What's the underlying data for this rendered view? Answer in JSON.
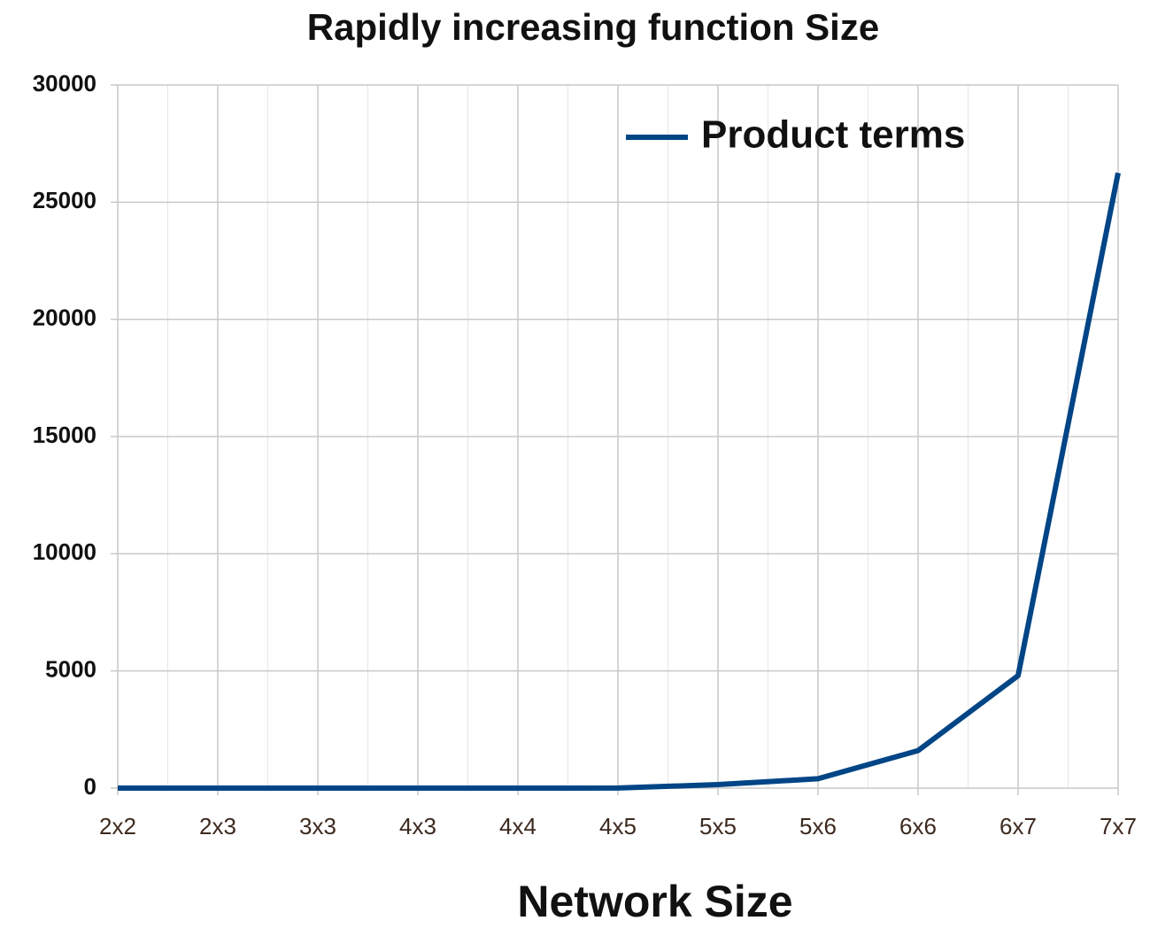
{
  "chart_data": {
    "type": "line",
    "title": "Rapidly increasing function Size",
    "x_label": "Network Size",
    "categories": [
      "2x2",
      "2x3",
      "3x3",
      "4x3",
      "4x4",
      "4x5",
      "5x5",
      "5x6",
      "6x6",
      "6x7",
      "7x7"
    ],
    "series": [
      {
        "name": "Product terms",
        "color": "#004586",
        "values": [
          0,
          0,
          0,
          0,
          0,
          5,
          150,
          400,
          1600,
          4800,
          26250
        ]
      }
    ],
    "ylim": [
      0,
      30000
    ],
    "yticks": [
      0,
      5000,
      10000,
      15000,
      20000,
      25000,
      30000
    ],
    "grid": true,
    "legend": "upper right"
  }
}
